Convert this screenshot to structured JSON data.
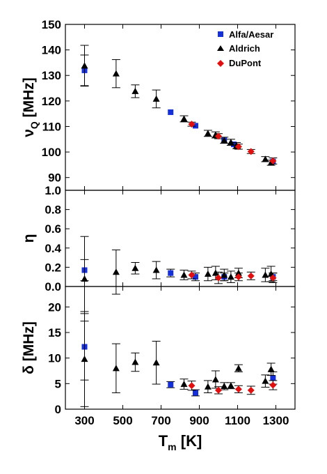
{
  "chart_data": {
    "type": "scatter",
    "x": {
      "label_main": "T",
      "label_sub": "m",
      "label_unit": " [K]",
      "ticks": [
        "300",
        "500",
        "700",
        "900",
        "1100",
        "1300"
      ],
      "range": [
        200,
        1400
      ]
    },
    "legend": {
      "placement": "top-right",
      "entries": [
        {
          "name": "Alfa/Aesar",
          "marker": "square",
          "color": "#1530d8"
        },
        {
          "name": "Aldrich",
          "marker": "triangle",
          "color": "#000000"
        },
        {
          "name": "DuPont",
          "marker": "diamond",
          "color": "#e01010"
        }
      ]
    },
    "panels": [
      {
        "id": "nuQ",
        "ylabel_main": "ν",
        "ylabel_sub": "Q",
        "ylabel_unit": " [MHz]",
        "ylim": [
          85,
          150
        ],
        "yticks": [
          "90",
          "100",
          "110",
          "120",
          "130",
          "140",
          "150"
        ],
        "series": [
          {
            "name": "Alfa/Aesar",
            "points": [
              [
                300,
                132,
                6
              ],
              [
                750,
                115.6,
                0
              ],
              [
                880,
                110.3,
                0
              ],
              [
                1030,
                104.6,
                0
              ],
              [
                1080,
                103,
                0
              ],
              [
                1285,
                96.3,
                0
              ]
            ]
          },
          {
            "name": "Aldrich",
            "points": [
              [
                300,
                133.8,
                8
              ],
              [
                465,
                130.7,
                5.5
              ],
              [
                565,
                123.8,
                2.5
              ],
              [
                675,
                120.8,
                3.5
              ],
              [
                820,
                113,
                1.2
              ],
              [
                945,
                107.3,
                1.2
              ],
              [
                985,
                106.7,
                1.2
              ],
              [
                1030,
                104.6,
                1.2
              ],
              [
                1065,
                103.8,
                1.2
              ],
              [
                1095,
                102.5,
                1.2
              ],
              [
                1245,
                97.2,
                1
              ],
              [
                1275,
                95.8,
                1
              ]
            ]
          },
          {
            "name": "DuPont",
            "points": [
              [
                860,
                110.9,
                0.8
              ],
              [
                1000,
                106.2,
                1
              ],
              [
                1105,
                102.1,
                1
              ],
              [
                1170,
                100.2,
                0.8
              ],
              [
                1285,
                96.5,
                1.2
              ]
            ]
          }
        ]
      },
      {
        "id": "eta",
        "ylabel_main": "η",
        "ylim": [
          0,
          1
        ],
        "yticks": [
          "0.0",
          "0.2",
          "0.4",
          "0.6",
          "0.8",
          "1.0"
        ],
        "series": [
          {
            "name": "Alfa/Aesar",
            "points": [
              [
                300,
                0.17,
                0.11
              ],
              [
                750,
                0.14,
                0.04
              ],
              [
                880,
                0.1,
                0.04
              ],
              [
                1030,
                0.1,
                0.04
              ],
              [
                1285,
                0.1,
                0.04
              ]
            ]
          },
          {
            "name": "Aldrich",
            "points": [
              [
                300,
                0.08,
                0.44
              ],
              [
                465,
                0.15,
                0.23
              ],
              [
                565,
                0.19,
                0.06
              ],
              [
                675,
                0.17,
                0.09
              ],
              [
                820,
                0.12,
                0.05
              ],
              [
                945,
                0.13,
                0.07
              ],
              [
                985,
                0.14,
                0.07
              ],
              [
                1030,
                0.12,
                0.06
              ],
              [
                1065,
                0.1,
                0.06
              ],
              [
                1105,
                0.14,
                0.05
              ],
              [
                1245,
                0.12,
                0.07
              ],
              [
                1275,
                0.13,
                0.08
              ]
            ]
          },
          {
            "name": "DuPont",
            "points": [
              [
                860,
                0.12,
                0.04
              ],
              [
                1000,
                0.09,
                0.06
              ],
              [
                1105,
                0.1,
                0.04
              ],
              [
                1170,
                0.11,
                0.04
              ],
              [
                1285,
                0.09,
                0.05
              ]
            ]
          }
        ]
      },
      {
        "id": "delta",
        "ylabel_main": "δ",
        "ylabel_unit": " [MHz]",
        "ylim": [
          0,
          24
        ],
        "yticks": [
          "0",
          "5",
          "10",
          "15",
          "20"
        ],
        "series": [
          {
            "name": "Alfa/Aesar",
            "points": [
              [
                300,
                12.2,
                6.5
              ],
              [
                750,
                4.8,
                0.6
              ],
              [
                880,
                3.2,
                0.6
              ],
              [
                1285,
                6.1,
                1.2
              ]
            ]
          },
          {
            "name": "Aldrich",
            "points": [
              [
                300,
                9.8,
                9.3
              ],
              [
                465,
                8,
                4.8
              ],
              [
                565,
                9.2,
                1.8
              ],
              [
                675,
                9.1,
                4.2
              ],
              [
                820,
                4.9,
                1
              ],
              [
                945,
                4.4,
                1.2
              ],
              [
                985,
                5.8,
                1.7
              ],
              [
                1030,
                4.5,
                0.7
              ],
              [
                1065,
                4.6,
                0.6
              ],
              [
                1105,
                8,
                0.7
              ],
              [
                1245,
                5.5,
                1.2
              ],
              [
                1275,
                7.8,
                1.2
              ]
            ]
          },
          {
            "name": "DuPont",
            "points": [
              [
                860,
                4.6,
                0.9
              ],
              [
                1000,
                3.7,
                0.7
              ],
              [
                1105,
                3.9,
                0.7
              ],
              [
                1170,
                3.7,
                0.8
              ],
              [
                1285,
                4.7,
                0.9
              ]
            ]
          }
        ]
      }
    ]
  }
}
